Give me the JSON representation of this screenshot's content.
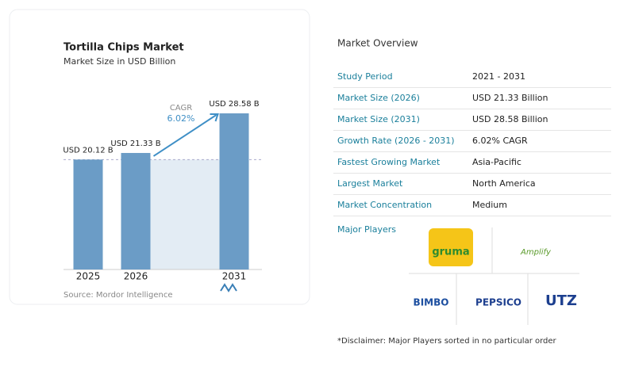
{
  "chart_data": {
    "type": "bar",
    "title": "Tortilla Chips Market",
    "subtitle": "Market Size in USD Billion",
    "categories": [
      "2025",
      "2026",
      "2031"
    ],
    "values": [
      20.12,
      21.33,
      28.58
    ],
    "value_labels": [
      "USD 20.12 B",
      "USD 21.33 B",
      "USD 28.58 B"
    ],
    "color": "#6b9cc6",
    "annotations": [
      "CAGR",
      "6.02%"
    ],
    "source": "Source: Mordor Intelligence"
  },
  "market_overview": {
    "title": "Market Overview",
    "rows": [
      [
        "Study Period",
        "2021 - 2031"
      ],
      [
        "Market Size (2026)",
        "USD 21.33 Billion"
      ],
      [
        "Market Size (2031)",
        "USD 28.58 Billion"
      ],
      [
        "Growth Rate (2026 - 2031)",
        "6.02% CAGR"
      ],
      [
        "Fastest Growing Market",
        "Asia-Pacific"
      ],
      [
        "Largest Market",
        "North America"
      ],
      [
        "Market Concentration",
        "Medium"
      ]
    ],
    "players_title": "Major Players",
    "players": [
      "gruma",
      "Amplify",
      "BIMBO",
      "PEPSICO",
      "UTZ"
    ],
    "disclaimer": "*Disclaimer: Major Players sorted in no particular order"
  }
}
